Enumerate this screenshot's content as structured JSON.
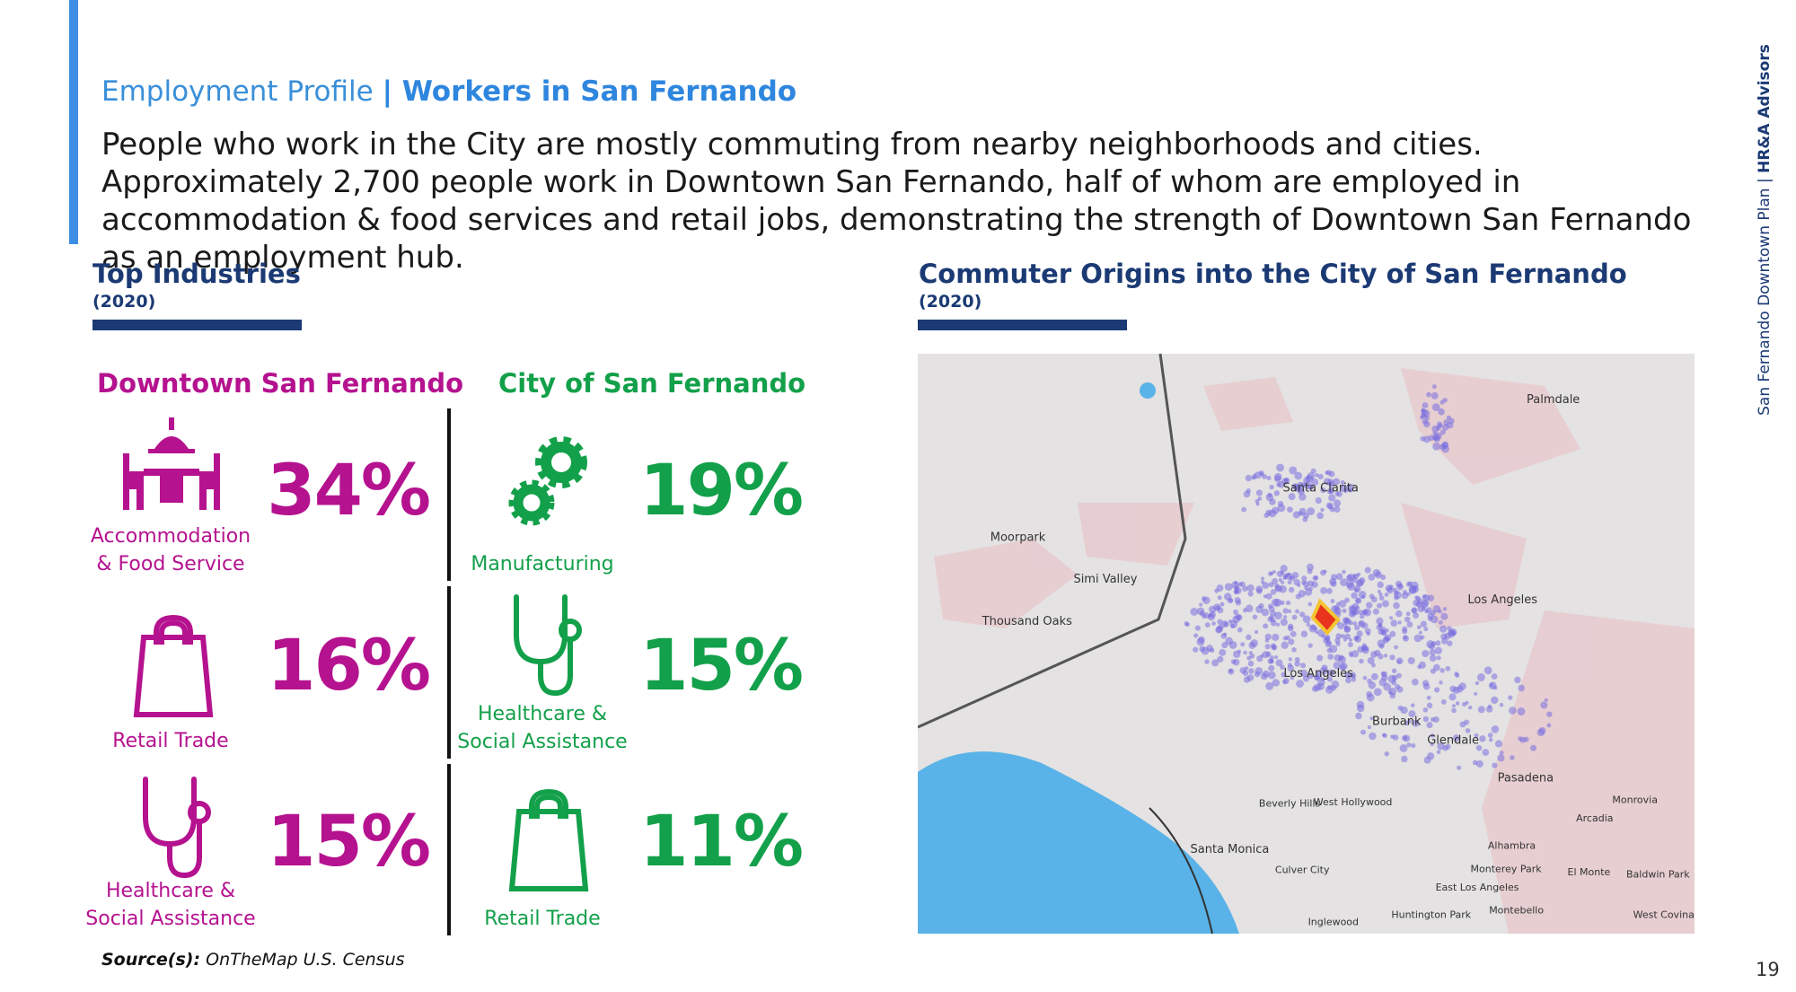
{
  "header": {
    "section": "Employment Profile",
    "title": "| Workers in San Fernando"
  },
  "intro": "People who work in the City are mostly commuting from nearby neighborhoods and cities. Approximately 2,700 people work in Downtown San Fernando, half of whom are employed in accommodation & food services and retail jobs, demonstrating the strength of Downtown San Fernando as an employment hub.",
  "industries": {
    "heading": "Top Industries",
    "year": "(2020)",
    "columns": [
      {
        "name": "Downtown San Fernando",
        "items": [
          {
            "percent": "34%",
            "label": [
              "Accommodation",
              "& Food Service"
            ]
          },
          {
            "percent": "16%",
            "label": [
              "Retail Trade"
            ]
          },
          {
            "percent": "15%",
            "label": [
              "Healthcare &",
              "Social Assistance"
            ]
          }
        ]
      },
      {
        "name": "City of San Fernando",
        "items": [
          {
            "percent": "19%",
            "label": [
              "Manufacturing"
            ]
          },
          {
            "percent": "15%",
            "label": [
              "Healthcare &",
              "Social Assistance"
            ]
          },
          {
            "percent": "11%",
            "label": [
              "Retail Trade"
            ]
          }
        ]
      }
    ]
  },
  "commute": {
    "heading": "Commuter Origins into the City of San Fernando",
    "year": "(2020)",
    "map_labels": [
      "Palmdale",
      "Santa Clarita",
      "Moorpark",
      "Simi Valley",
      "Thousand Oaks",
      "Los Angeles",
      "Los Angeles",
      "Burbank",
      "Glendale",
      "Pasadena",
      "Santa Monica",
      "Beverly Hills",
      "West Hollywood",
      "Culver City",
      "Alhambra",
      "Arcadia",
      "Monrovia",
      "El Monte",
      "Baldwin Park",
      "Monterey Park",
      "East Los Angeles",
      "Inglewood",
      "Huntington Park",
      "Montebello",
      "West Covina"
    ]
  },
  "source": {
    "label": "Source(s):",
    "text": "OnTheMap U.S. Census"
  },
  "sidebar": {
    "plan": "San Fernando Downtown Plan",
    "separator": "|",
    "firm": "HR&A Advisors"
  },
  "page_number": "19"
}
